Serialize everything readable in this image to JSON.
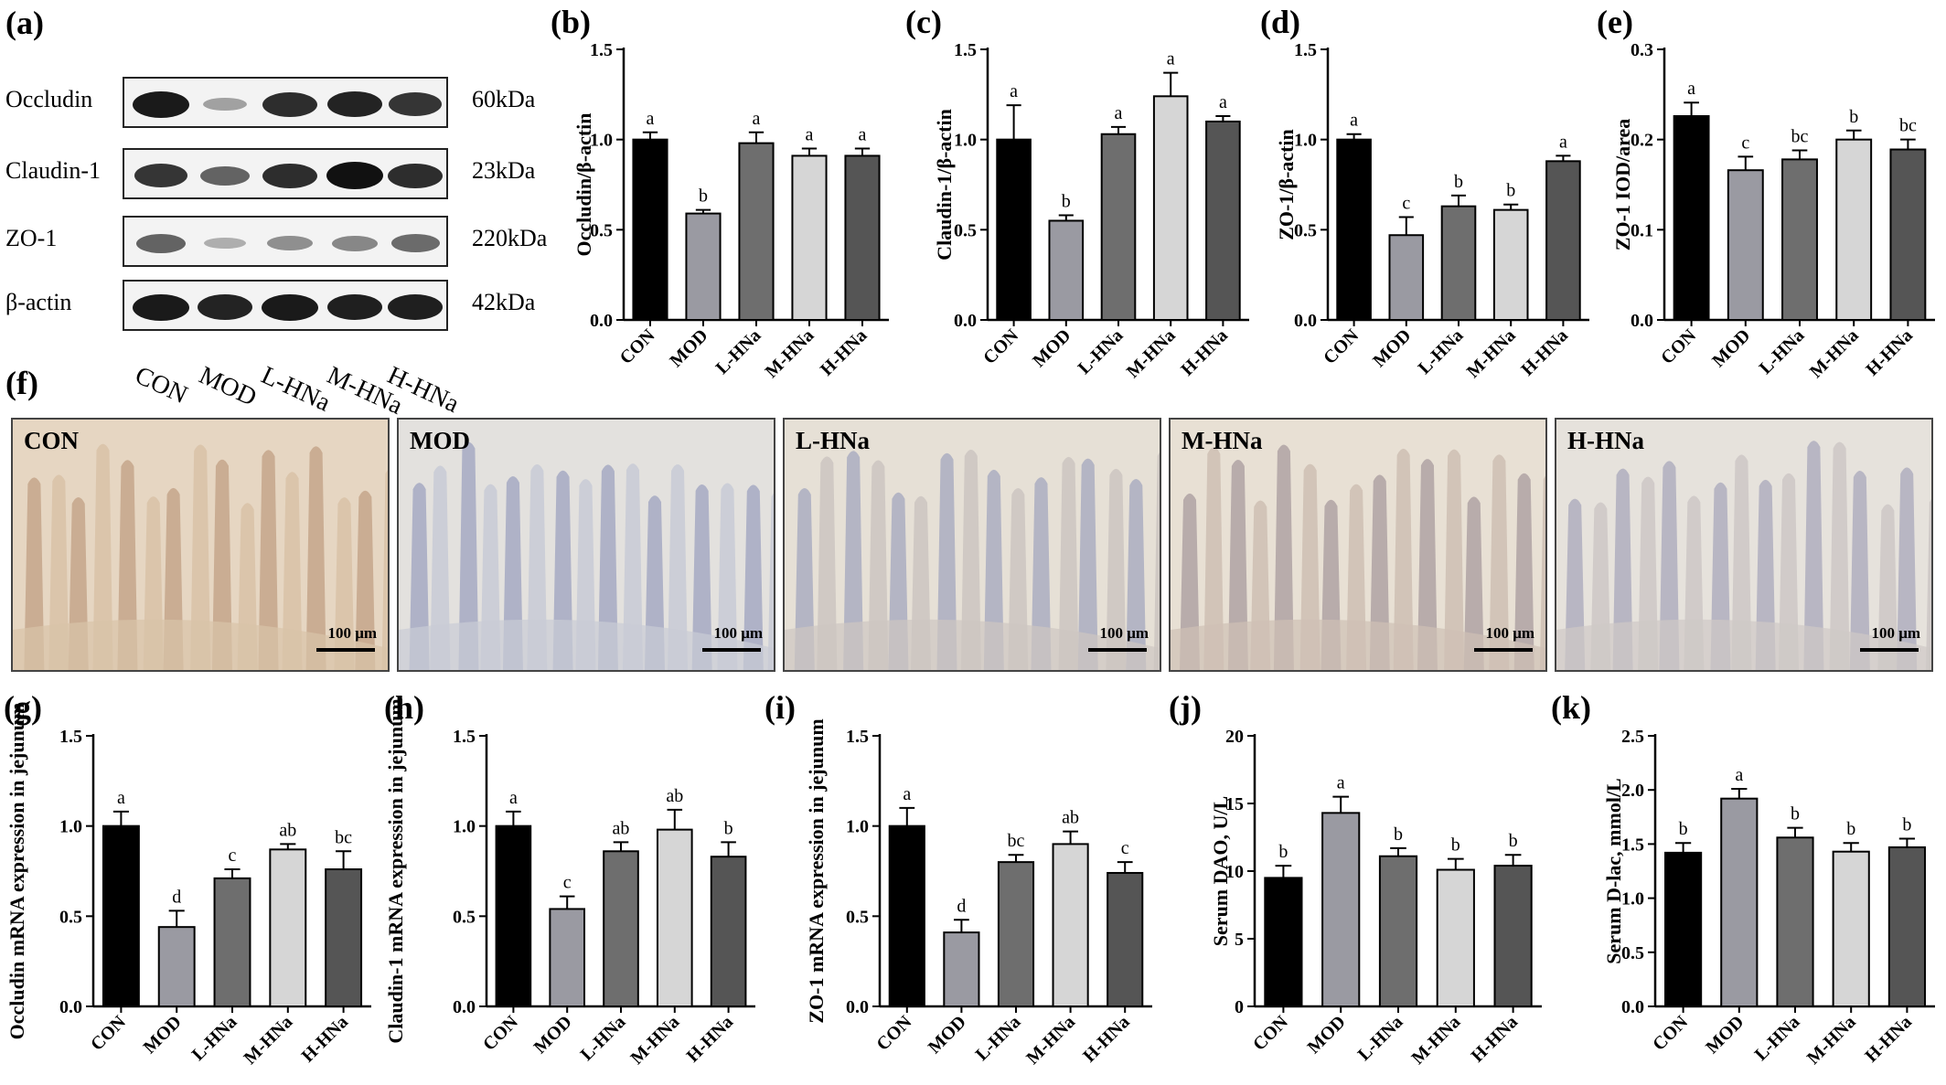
{
  "panel_labels": {
    "a": "(a)",
    "f": "(f)"
  },
  "blot": {
    "proteins": [
      {
        "name": "Occludin",
        "kda": "60kDa",
        "intensities": [
          0.95,
          0.2,
          0.85,
          0.9,
          0.8
        ]
      },
      {
        "name": "Claudin-1",
        "kda": "23kDa",
        "intensities": [
          0.8,
          0.55,
          0.85,
          1.0,
          0.85
        ]
      },
      {
        "name": "ZO-1",
        "kda": "220kDa",
        "intensities": [
          0.55,
          0.12,
          0.3,
          0.35,
          0.5
        ]
      },
      {
        "name": "β-actin",
        "kda": "42kDa",
        "intensities": [
          0.95,
          0.9,
          0.95,
          0.92,
          0.92
        ]
      }
    ],
    "lanes": [
      "CON",
      "MOD",
      "L-HNa",
      "M-HNa",
      "H-HNa"
    ]
  },
  "histology": {
    "panels": [
      "CON",
      "MOD",
      "L-HNa",
      "M-HNa",
      "H-HNa"
    ],
    "scale_label": "100 μm"
  },
  "colors": [
    "#000000",
    "#9a9aa2",
    "#6e6e6e",
    "#d6d6d6",
    "#555555"
  ],
  "chart_data": [
    {
      "id": "b",
      "label": "(b)",
      "type": "bar",
      "categories": [
        "CON",
        "MOD",
        "L-HNa",
        "M-HNa",
        "H-HNa"
      ],
      "values": [
        1.0,
        0.59,
        0.98,
        0.91,
        0.91
      ],
      "errors": [
        0.04,
        0.02,
        0.06,
        0.04,
        0.04
      ],
      "letters": [
        "a",
        "b",
        "a",
        "a",
        "a"
      ],
      "ylabel": "Occludin/β-actin",
      "ylim": [
        0,
        1.5
      ],
      "yticks": [
        0.0,
        0.5,
        1.0,
        1.5
      ],
      "ytick_labels": [
        "0.0",
        "0.5",
        "1.0",
        "1.5"
      ]
    },
    {
      "id": "c",
      "label": "(c)",
      "type": "bar",
      "categories": [
        "CON",
        "MOD",
        "L-HNa",
        "M-HNa",
        "H-HNa"
      ],
      "values": [
        1.0,
        0.55,
        1.03,
        1.24,
        1.1
      ],
      "errors": [
        0.19,
        0.03,
        0.04,
        0.13,
        0.03
      ],
      "letters": [
        "a",
        "b",
        "a",
        "a",
        "a"
      ],
      "ylabel": "Claudin-1/β-actin",
      "ylim": [
        0,
        1.5
      ],
      "yticks": [
        0.0,
        0.5,
        1.0,
        1.5
      ],
      "ytick_labels": [
        "0.0",
        "0.5",
        "1.0",
        "1.5"
      ]
    },
    {
      "id": "d",
      "label": "(d)",
      "type": "bar",
      "categories": [
        "CON",
        "MOD",
        "L-HNa",
        "M-HNa",
        "H-HNa"
      ],
      "values": [
        1.0,
        0.47,
        0.63,
        0.61,
        0.88
      ],
      "errors": [
        0.03,
        0.1,
        0.06,
        0.03,
        0.03
      ],
      "letters": [
        "a",
        "c",
        "b",
        "b",
        "a"
      ],
      "ylabel": "ZO-1/β-actin",
      "ylim": [
        0,
        1.5
      ],
      "yticks": [
        0.0,
        0.5,
        1.0,
        1.5
      ],
      "ytick_labels": [
        "0.0",
        "0.5",
        "1.0",
        "1.5"
      ]
    },
    {
      "id": "e",
      "label": "(e)",
      "type": "bar",
      "categories": [
        "CON",
        "MOD",
        "L-HNa",
        "M-HNa",
        "H-HNa"
      ],
      "values": [
        0.226,
        0.166,
        0.178,
        0.2,
        0.189
      ],
      "errors": [
        0.015,
        0.015,
        0.01,
        0.01,
        0.011
      ],
      "letters": [
        "a",
        "c",
        "bc",
        "b",
        "bc"
      ],
      "ylabel": "ZO-1 IOD/area",
      "ylim": [
        0,
        0.3
      ],
      "yticks": [
        0.0,
        0.1,
        0.2,
        0.3
      ],
      "ytick_labels": [
        "0.0",
        "0.1",
        "0.2",
        "0.3"
      ]
    },
    {
      "id": "g",
      "label": "(g)",
      "type": "bar",
      "categories": [
        "CON",
        "MOD",
        "L-HNa",
        "M-HNa",
        "H-HNa"
      ],
      "values": [
        1.0,
        0.44,
        0.71,
        0.87,
        0.76
      ],
      "errors": [
        0.08,
        0.09,
        0.05,
        0.03,
        0.1
      ],
      "letters": [
        "a",
        "d",
        "c",
        "ab",
        "bc"
      ],
      "ylabel": "Occludin mRNA expression in jejunum",
      "ylim": [
        0,
        1.5
      ],
      "yticks": [
        0.0,
        0.5,
        1.0,
        1.5
      ],
      "ytick_labels": [
        "0.0",
        "0.5",
        "1.0",
        "1.5"
      ]
    },
    {
      "id": "h",
      "label": "(h)",
      "type": "bar",
      "categories": [
        "CON",
        "MOD",
        "L-HNa",
        "M-HNa",
        "H-HNa"
      ],
      "values": [
        1.0,
        0.54,
        0.86,
        0.98,
        0.83
      ],
      "errors": [
        0.08,
        0.07,
        0.05,
        0.11,
        0.08
      ],
      "letters": [
        "a",
        "c",
        "ab",
        "ab",
        "b"
      ],
      "ylabel": "Claudin-1 mRNA expression in jejunum",
      "ylim": [
        0,
        1.5
      ],
      "yticks": [
        0.0,
        0.5,
        1.0,
        1.5
      ],
      "ytick_labels": [
        "0.0",
        "0.5",
        "1.0",
        "1.5"
      ]
    },
    {
      "id": "i",
      "label": "(i)",
      "type": "bar",
      "categories": [
        "CON",
        "MOD",
        "L-HNa",
        "M-HNa",
        "H-HNa"
      ],
      "values": [
        1.0,
        0.41,
        0.8,
        0.9,
        0.74
      ],
      "errors": [
        0.1,
        0.07,
        0.04,
        0.07,
        0.06
      ],
      "letters": [
        "a",
        "d",
        "bc",
        "ab",
        "c"
      ],
      "ylabel": "ZO-1 mRNA expression in jejunum",
      "ylim": [
        0,
        1.5
      ],
      "yticks": [
        0.0,
        0.5,
        1.0,
        1.5
      ],
      "ytick_labels": [
        "0.0",
        "0.5",
        "1.0",
        "1.5"
      ]
    },
    {
      "id": "j",
      "label": "(j)",
      "type": "bar",
      "categories": [
        "CON",
        "MOD",
        "L-HNa",
        "M-HNa",
        "H-HNa"
      ],
      "values": [
        9.5,
        14.3,
        11.1,
        10.1,
        10.4
      ],
      "errors": [
        0.9,
        1.2,
        0.6,
        0.8,
        0.8
      ],
      "letters": [
        "b",
        "a",
        "b",
        "b",
        "b"
      ],
      "ylabel": "Serum DAO, U/L",
      "ylim": [
        0,
        20
      ],
      "yticks": [
        0,
        5,
        10,
        15,
        20
      ],
      "ytick_labels": [
        "0",
        "5",
        "10",
        "15",
        "20"
      ]
    },
    {
      "id": "k",
      "label": "(k)",
      "type": "bar",
      "categories": [
        "CON",
        "MOD",
        "L-HNa",
        "M-HNa",
        "H-HNa"
      ],
      "values": [
        1.42,
        1.92,
        1.56,
        1.43,
        1.47
      ],
      "errors": [
        0.09,
        0.09,
        0.09,
        0.08,
        0.08
      ],
      "letters": [
        "b",
        "a",
        "b",
        "b",
        "b"
      ],
      "ylabel": "Serum D-lac, mmol/L",
      "ylim": [
        0,
        2.5
      ],
      "yticks": [
        0.0,
        0.5,
        1.0,
        1.5,
        2.0,
        2.5
      ],
      "ytick_labels": [
        "0.0",
        "0.5",
        "1.0",
        "1.5",
        "2.0",
        "2.5"
      ]
    }
  ]
}
